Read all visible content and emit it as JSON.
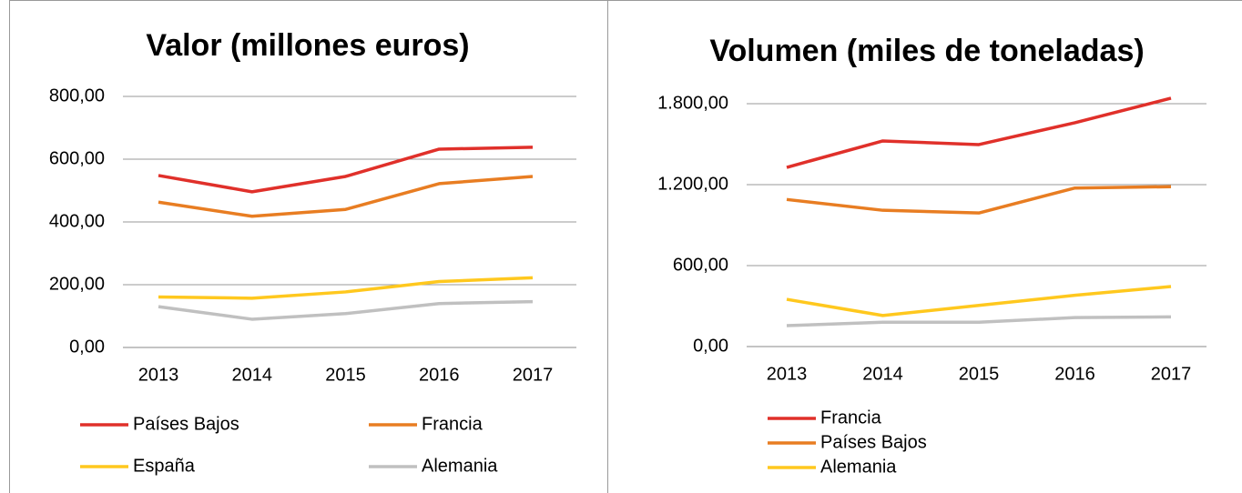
{
  "chart_data": [
    {
      "type": "line",
      "title": "Valor (millones euros)",
      "categories": [
        "2013",
        "2014",
        "2015",
        "2016",
        "2017"
      ],
      "series": [
        {
          "name": "Países Bajos",
          "color": "#e0302a",
          "values": [
            548,
            496,
            545,
            632,
            638
          ]
        },
        {
          "name": "Francia",
          "color": "#e87d22",
          "values": [
            463,
            418,
            440,
            522,
            545
          ]
        },
        {
          "name": "España",
          "color": "#ffc81e",
          "values": [
            161,
            157,
            177,
            210,
            222
          ]
        },
        {
          "name": "Alemania",
          "color": "#c0c0c0",
          "values": [
            130,
            90,
            108,
            140,
            146
          ]
        }
      ],
      "ylim": [
        0,
        800
      ],
      "yticks": [
        {
          "value": 0,
          "label": "0,00"
        },
        {
          "value": 200,
          "label": "200,00"
        },
        {
          "value": 400,
          "label": "400,00"
        },
        {
          "value": 600,
          "label": "600,00"
        },
        {
          "value": 800,
          "label": "800,00"
        }
      ],
      "grid": true,
      "legend": "bottom"
    },
    {
      "type": "line",
      "title": "Volumen (miles de toneladas)",
      "categories": [
        "2013",
        "2014",
        "2015",
        "2016",
        "2017"
      ],
      "series": [
        {
          "name": "Francia",
          "color": "#e0302a",
          "values": [
            1328,
            1524,
            1497,
            1659,
            1841
          ]
        },
        {
          "name": "Países Bajos",
          "color": "#e87d22",
          "values": [
            1090,
            1010,
            990,
            1175,
            1185
          ]
        },
        {
          "name": "Alemania",
          "color": "#ffc81e",
          "values": [
            350,
            230,
            305,
            380,
            445
          ]
        },
        {
          "color": "#c0c0c0",
          "values": [
            155,
            180,
            180,
            215,
            220
          ]
        }
      ],
      "ylim": [
        0,
        1800
      ],
      "yticks": [
        {
          "value": 0,
          "label": "0,00"
        },
        {
          "value": 600,
          "label": "600,00"
        },
        {
          "value": 1200,
          "label": "1.200,00"
        },
        {
          "value": 1800,
          "label": "1.800,00"
        }
      ],
      "grid": true,
      "legend": "bottom"
    }
  ]
}
